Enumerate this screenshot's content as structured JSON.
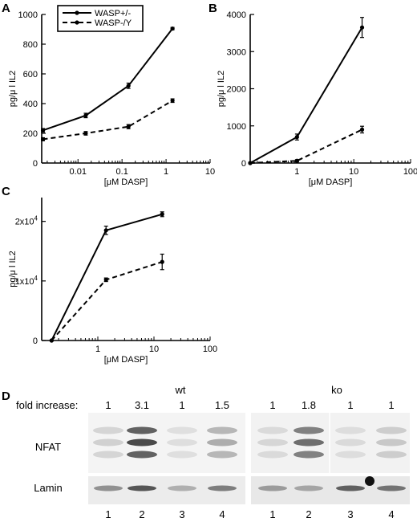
{
  "chart_data": [
    {
      "panel": "A",
      "type": "line",
      "x_scale": "log",
      "xlabel": "[μM DASP]",
      "ylabel": "pg/μ l IL2",
      "xlim": [
        0.0015,
        10
      ],
      "ylim": [
        0,
        1000
      ],
      "xticks": [
        0.01,
        0.1,
        1,
        10
      ],
      "xtick_labels": [
        "0.01",
        "0.1",
        "1",
        "10"
      ],
      "yticks": [
        0,
        200,
        400,
        600,
        800,
        1000
      ],
      "ytick_labels": [
        "0",
        "200",
        "400",
        "600",
        "800",
        "1000"
      ],
      "legend": "top-left",
      "series": [
        {
          "name": "WASP+/-",
          "style": "solid",
          "x": [
            0.0016,
            0.015,
            0.14,
            1.4
          ],
          "y": [
            220,
            320,
            520,
            905
          ],
          "err": [
            12,
            15,
            18,
            8
          ]
        },
        {
          "name": "WASP-/Y",
          "style": "dashed",
          "x": [
            0.0016,
            0.015,
            0.14,
            1.4
          ],
          "y": [
            160,
            200,
            245,
            420
          ],
          "err": [
            10,
            12,
            14,
            12
          ]
        }
      ]
    },
    {
      "panel": "B",
      "type": "line",
      "x_scale": "log",
      "xlabel": "[μM DASP]",
      "ylabel": "pg/μ l IL2",
      "xlim": [
        0.15,
        100
      ],
      "ylim": [
        0,
        4000
      ],
      "xticks": [
        1,
        10,
        100
      ],
      "xtick_labels": [
        "1",
        "10",
        "100"
      ],
      "yticks": [
        0,
        1000,
        2000,
        3000,
        4000
      ],
      "ytick_labels": [
        "0",
        "1000",
        "2000",
        "3000",
        "4000"
      ],
      "series": [
        {
          "style": "solid",
          "x": [
            0.15,
            1,
            14
          ],
          "y": [
            0,
            700,
            3650
          ],
          "err": [
            0,
            80,
            270
          ]
        },
        {
          "style": "dashed",
          "x": [
            0.15,
            1,
            14
          ],
          "y": [
            0,
            60,
            900
          ],
          "err": [
            0,
            30,
            90
          ]
        }
      ]
    },
    {
      "panel": "C",
      "type": "line",
      "x_scale": "log",
      "xlabel": "[μM DASP]",
      "ylabel": "pg/μ l IL2",
      "xlim": [
        0.1,
        100
      ],
      "ylim": [
        0,
        24000
      ],
      "xticks": [
        1,
        10,
        100
      ],
      "xtick_labels": [
        "1",
        "10",
        "100"
      ],
      "yticks": [
        0,
        10000,
        20000
      ],
      "ytick_labels": [
        "0",
        "1x10",
        "2x10"
      ],
      "ytick_exponent": "4",
      "series": [
        {
          "style": "solid",
          "x": [
            0.15,
            1.4,
            14
          ],
          "y": [
            0,
            18500,
            21200
          ],
          "err": [
            0,
            700,
            400
          ]
        },
        {
          "style": "dashed",
          "x": [
            0.15,
            1.4,
            14
          ],
          "y": [
            0,
            10200,
            13200
          ],
          "err": [
            0,
            300,
            1300
          ]
        }
      ]
    }
  ],
  "blot": {
    "panel": "D",
    "groups": [
      "wt",
      "ko"
    ],
    "fold_label": "fold increase:",
    "fold_values": [
      "1",
      "3.1",
      "1",
      "1.5",
      "1",
      "1.8",
      "1",
      "1"
    ],
    "rows": [
      "NFAT",
      "Lamin"
    ],
    "lane_numbers": [
      "1",
      "2",
      "3",
      "4",
      "1",
      "2",
      "3",
      "4"
    ],
    "nfat_intensity": [
      0.15,
      0.9,
      0.08,
      0.35,
      0.12,
      0.7,
      0.1,
      0.2
    ],
    "lamin_intensity": [
      0.45,
      0.75,
      0.3,
      0.55,
      0.4,
      0.35,
      0.7,
      0.6
    ]
  }
}
